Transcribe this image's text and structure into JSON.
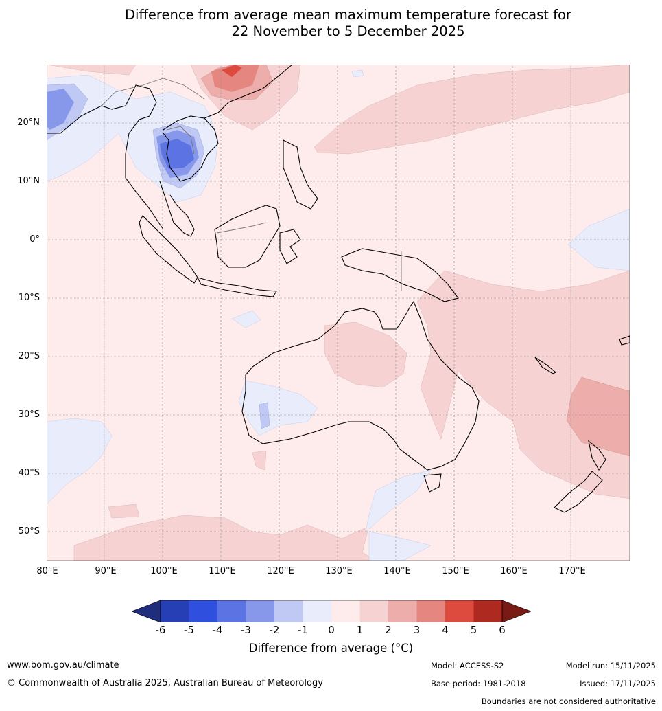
{
  "title_line1": "Difference from average mean maximum temperature forecast for",
  "title_line2": "22 November to 5 December 2025",
  "lat_labels": [
    "20°N",
    "10°N",
    "0°",
    "10°S",
    "20°S",
    "30°S",
    "40°S",
    "50°S"
  ],
  "lon_labels": [
    "80°E",
    "90°E",
    "100°E",
    "110°E",
    "120°E",
    "130°E",
    "140°E",
    "150°E",
    "160°E",
    "170°E"
  ],
  "colorbar": {
    "ticks": [
      "-6",
      "-5",
      "-4",
      "-3",
      "-2",
      "-1",
      "0",
      "1",
      "2",
      "3",
      "4",
      "5",
      "6"
    ],
    "colors": [
      "#1f2d7c",
      "#273fb5",
      "#2f50df",
      "#5b73e3",
      "#8798ea",
      "#c0c9f3",
      "#e9ecfb",
      "#fdeceb",
      "#f6d3d2",
      "#edaeab",
      "#e58680",
      "#dd4b3f",
      "#ae2a20",
      "#7a1a14"
    ],
    "title": "Difference from average (°C)"
  },
  "footer": {
    "url": "www.bom.gov.au/climate",
    "copyright": "© Commonwealth of Australia 2025, Australian Bureau of Meteorology",
    "model": "Model: ACCESS-S2",
    "base_period": "Base period: 1981-2018",
    "model_run": "Model run: 15/11/2025",
    "issued": "Issued: 17/11/2025",
    "disclaimer": "Boundaries are not considered authoritative"
  }
}
